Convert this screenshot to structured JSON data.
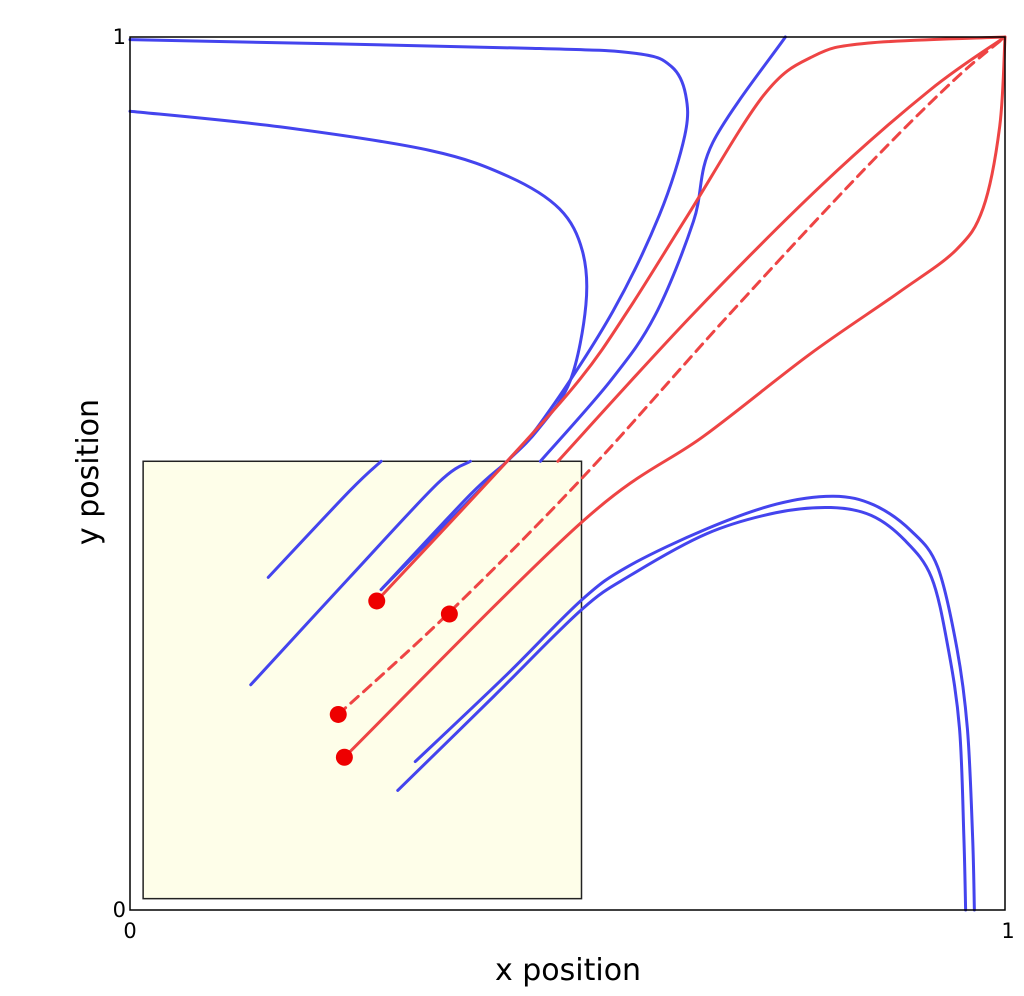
{
  "chart_data": {
    "type": "line",
    "title": "",
    "xlabel": "x position",
    "ylabel": "y position",
    "xlim": [
      0,
      1
    ],
    "ylim": [
      0,
      1
    ],
    "xticks": [
      "0",
      "1"
    ],
    "yticks": [
      "0",
      "1"
    ],
    "grid": false,
    "colors": {
      "blue": "#4444ee",
      "red": "#ee4444",
      "dot": "#ee0000",
      "box_fill": "#fefee9"
    },
    "region": {
      "x": [
        0.015,
        0.516
      ],
      "y": [
        0.013,
        0.514
      ]
    },
    "series": [
      {
        "color": "blue",
        "style": "solid",
        "points": [
          [
            0.158,
            0.381
          ],
          [
            0.251,
            0.48
          ],
          [
            0.287,
            0.514
          ]
        ]
      },
      {
        "color": "blue",
        "style": "solid",
        "points": [
          [
            0.138,
            0.258
          ],
          [
            0.251,
            0.381
          ],
          [
            0.352,
            0.489
          ],
          [
            0.389,
            0.514
          ]
        ]
      },
      {
        "color": "blue",
        "style": "solid",
        "points": [
          [
            0.287,
            0.367
          ],
          [
            0.389,
            0.476
          ],
          [
            0.431,
            0.514
          ],
          [
            0.466,
            0.55
          ],
          [
            0.503,
            0.606
          ],
          [
            0.521,
            0.693
          ],
          [
            0.517,
            0.755
          ],
          [
            0.491,
            0.803
          ],
          [
            0.433,
            0.84
          ],
          [
            0.343,
            0.87
          ],
          [
            0.172,
            0.897
          ],
          [
            0.0,
            0.915
          ]
        ]
      },
      {
        "color": "blue",
        "style": "solid",
        "points": [
          [
            0.287,
            0.367
          ],
          [
            0.431,
            0.514
          ],
          [
            0.48,
            0.573
          ],
          [
            0.552,
            0.686
          ],
          [
            0.605,
            0.796
          ],
          [
            0.634,
            0.887
          ],
          [
            0.635,
            0.934
          ],
          [
            0.619,
            0.966
          ],
          [
            0.58,
            0.981
          ],
          [
            0.46,
            0.987
          ],
          [
            0.0,
            0.997
          ]
        ]
      },
      {
        "color": "blue",
        "style": "solid",
        "points": [
          [
            0.469,
            0.514
          ],
          [
            0.549,
            0.606
          ],
          [
            0.6,
            0.681
          ],
          [
            0.644,
            0.789
          ],
          [
            0.666,
            0.879
          ],
          [
            0.749,
            1.0
          ]
        ]
      },
      {
        "color": "blue",
        "style": "solid",
        "points": [
          [
            0.326,
            0.17
          ],
          [
            0.431,
            0.27
          ],
          [
            0.516,
            0.355
          ],
          [
            0.57,
            0.394
          ],
          [
            0.66,
            0.437
          ],
          [
            0.739,
            0.465
          ],
          [
            0.804,
            0.474
          ],
          [
            0.85,
            0.464
          ],
          [
            0.893,
            0.434
          ],
          [
            0.923,
            0.393
          ],
          [
            0.945,
            0.3
          ],
          [
            0.957,
            0.208
          ],
          [
            0.963,
            0.083
          ],
          [
            0.965,
            0.0
          ]
        ]
      },
      {
        "color": "blue",
        "style": "solid",
        "points": [
          [
            0.306,
            0.137
          ],
          [
            0.416,
            0.245
          ],
          [
            0.516,
            0.344
          ],
          [
            0.573,
            0.384
          ],
          [
            0.659,
            0.431
          ],
          [
            0.738,
            0.455
          ],
          [
            0.801,
            0.461
          ],
          [
            0.847,
            0.452
          ],
          [
            0.885,
            0.424
          ],
          [
            0.916,
            0.381
          ],
          [
            0.935,
            0.3
          ],
          [
            0.948,
            0.208
          ],
          [
            0.953,
            0.083
          ],
          [
            0.955,
            0.0
          ]
        ]
      },
      {
        "color": "red",
        "style": "solid",
        "points": [
          [
            0.282,
            0.354
          ],
          [
            0.431,
            0.514
          ],
          [
            0.515,
            0.609
          ],
          [
            0.57,
            0.688
          ],
          [
            0.637,
            0.795
          ],
          [
            0.724,
            0.933
          ],
          [
            0.781,
            0.978
          ],
          [
            0.843,
            0.993
          ],
          [
            1.0,
            1.0
          ]
        ]
      },
      {
        "color": "red",
        "style": "solid",
        "points": [
          [
            0.245,
            0.175
          ],
          [
            0.516,
            0.444
          ],
          [
            0.656,
            0.543
          ],
          [
            0.776,
            0.636
          ],
          [
            0.878,
            0.707
          ],
          [
            0.944,
            0.756
          ],
          [
            0.975,
            0.804
          ],
          [
            0.994,
            0.898
          ],
          [
            1.0,
            1.0
          ]
        ]
      },
      {
        "color": "red",
        "style": "solid",
        "points": [
          [
            0.489,
            0.514
          ],
          [
            0.641,
            0.68
          ],
          [
            0.789,
            0.829
          ],
          [
            0.914,
            0.939
          ],
          [
            1.0,
            1.0
          ]
        ]
      },
      {
        "color": "red",
        "style": "dashed",
        "points": [
          [
            0.238,
            0.224
          ],
          [
            0.362,
            0.338
          ],
          [
            0.516,
            0.494
          ],
          [
            0.682,
            0.679
          ],
          [
            0.836,
            0.845
          ],
          [
            0.94,
            0.949
          ],
          [
            1.0,
            1.0
          ]
        ]
      }
    ],
    "markers": [
      {
        "x": 0.282,
        "y": 0.354
      },
      {
        "x": 0.365,
        "y": 0.339
      },
      {
        "x": 0.238,
        "y": 0.224
      },
      {
        "x": 0.245,
        "y": 0.175
      }
    ]
  }
}
